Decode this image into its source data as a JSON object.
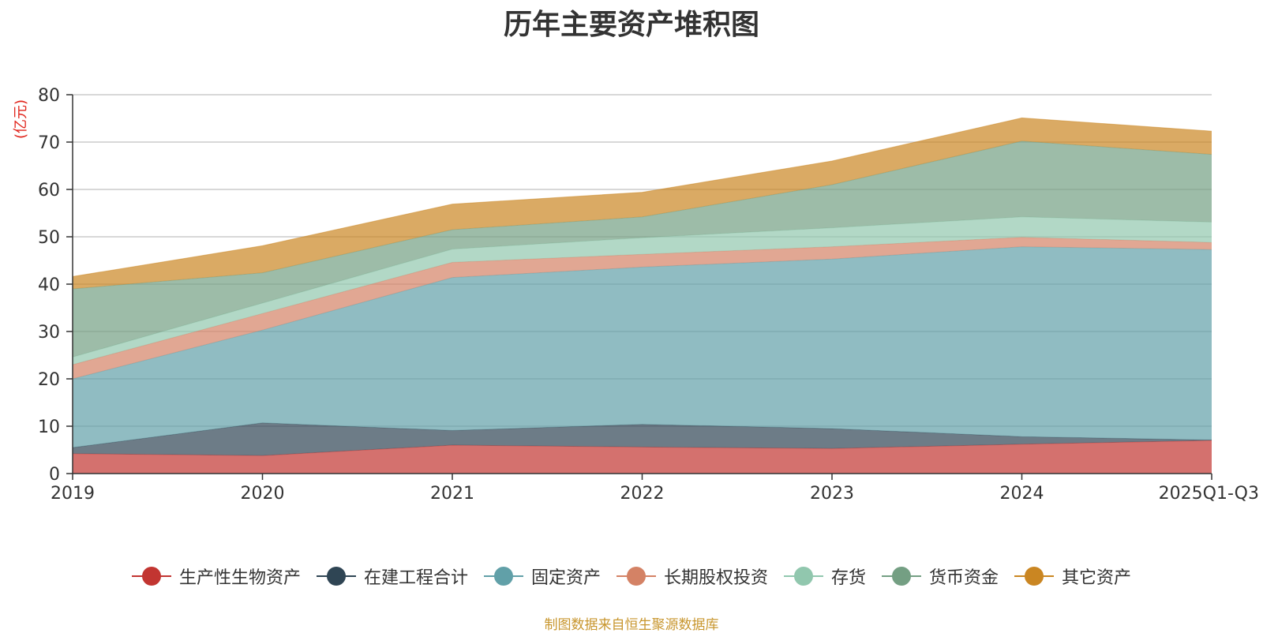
{
  "chart_data": {
    "type": "area",
    "stacked": true,
    "title": "历年主要资产堆积图",
    "ylabel": "(亿元)",
    "xlabel": "",
    "ylim": [
      0,
      80
    ],
    "yticks": [
      0,
      10,
      20,
      30,
      40,
      50,
      60,
      70,
      80
    ],
    "grid": true,
    "legend_position": "bottom",
    "categories": [
      "2019",
      "2020",
      "2021",
      "2022",
      "2023",
      "2024",
      "2025Q1-Q3"
    ],
    "series": [
      {
        "name": "生产性生物资产",
        "color": "#c23531",
        "values": [
          4.2,
          3.8,
          6.0,
          5.6,
          5.3,
          6.2,
          7.0
        ]
      },
      {
        "name": "在建工程合计",
        "color": "#2f4554",
        "values": [
          1.3,
          6.9,
          3.1,
          4.8,
          4.2,
          1.6,
          0.1
        ]
      },
      {
        "name": "固定资产",
        "color": "#61a0a8",
        "values": [
          14.5,
          19.6,
          32.3,
          33.2,
          35.8,
          40.1,
          40.2
        ]
      },
      {
        "name": "长期股权投资",
        "color": "#d48265",
        "values": [
          3.0,
          3.5,
          3.2,
          2.7,
          2.6,
          2.0,
          1.5
        ]
      },
      {
        "name": "存货",
        "color": "#91c7ae",
        "values": [
          1.6,
          2.2,
          2.8,
          3.5,
          4.0,
          4.3,
          4.3
        ]
      },
      {
        "name": "货币资金",
        "color": "#749f83",
        "values": [
          14.4,
          6.4,
          4.1,
          4.4,
          9.1,
          16.0,
          14.3
        ]
      },
      {
        "name": "其它资产",
        "color": "#ca8622",
        "values": [
          2.6,
          5.7,
          5.4,
          5.2,
          5.0,
          4.9,
          4.9
        ]
      }
    ]
  },
  "source_note": "制图数据来自恒生聚源数据库"
}
